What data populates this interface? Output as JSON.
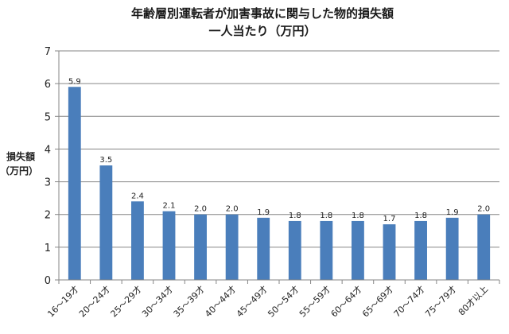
{
  "chart_data": {
    "type": "bar",
    "title": "年齢層別運転者が加害事故に関与した物的損失額",
    "subtitle": "一人当たり（万円）",
    "ylabel_line1": "損失額",
    "ylabel_line2": "（万円）",
    "xlabel": "",
    "ylim": [
      0,
      7
    ],
    "yticks": [
      0,
      1,
      2,
      3,
      4,
      5,
      6,
      7
    ],
    "grid": true,
    "legend": "none",
    "bar_color": "#4a7ebb",
    "categories": [
      "16～19才",
      "20～24才",
      "25～29才",
      "30～34才",
      "35～39才",
      "40～44才",
      "45～49才",
      "50～54才",
      "55～59才",
      "60～64才",
      "65～69才",
      "70～74才",
      "75～79才",
      "80才以上"
    ],
    "values": [
      5.9,
      3.5,
      2.4,
      2.1,
      2.0,
      2.0,
      1.9,
      1.8,
      1.8,
      1.8,
      1.7,
      1.8,
      1.9,
      2.0
    ],
    "data_labels": [
      "5.9",
      "3.5",
      "2.4",
      "2.1",
      "2.0",
      "2.0",
      "1.9",
      "1.8",
      "1.8",
      "1.8",
      "1.7",
      "1.8",
      "1.9",
      "2.0"
    ]
  }
}
